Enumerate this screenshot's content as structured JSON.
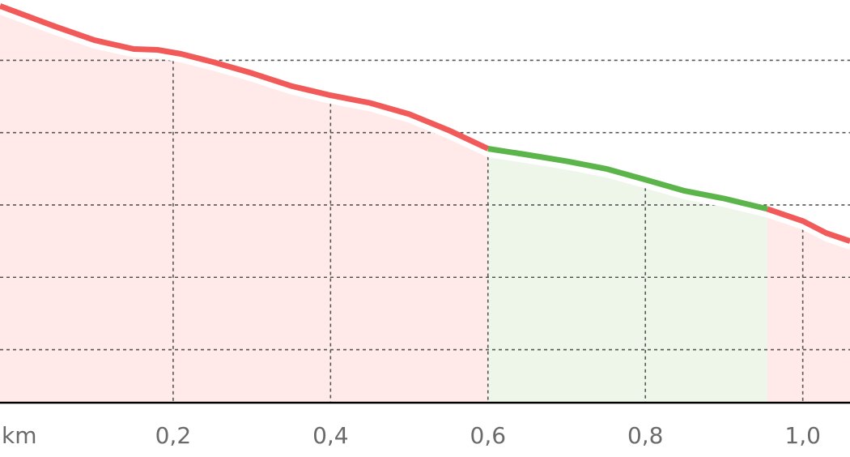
{
  "chart_data": {
    "type": "area",
    "xunit": "km",
    "xlim": [
      -0.02,
      1.06
    ],
    "x_ticks": [
      0.2,
      0.4,
      0.6,
      0.8,
      1.0
    ],
    "x_tick_labels": [
      "0,2",
      "0,4",
      "0,6",
      "0,8",
      "1,0"
    ],
    "ylim": [
      0,
      100
    ],
    "y_gridlines": [
      13,
      31,
      49,
      67,
      85,
      103
    ],
    "grid": true,
    "colors": {
      "steep": "#f25a5a",
      "moderate": "#5cb54a",
      "steep_fill": "#ffe9e9",
      "moderate_fill": "#eef6ea",
      "grid": "#555555",
      "axis": "#000000",
      "tick_label": "#6a6a6a"
    },
    "segments": [
      {
        "category": "steep",
        "points": [
          [
            -0.02,
            98.5
          ],
          [
            0.05,
            93.4
          ],
          [
            0.1,
            90.0
          ],
          [
            0.15,
            87.8
          ],
          [
            0.18,
            87.6
          ],
          [
            0.21,
            86.6
          ],
          [
            0.25,
            84.6
          ],
          [
            0.3,
            81.8
          ],
          [
            0.35,
            78.6
          ],
          [
            0.4,
            76.3
          ],
          [
            0.45,
            74.4
          ],
          [
            0.5,
            71.6
          ],
          [
            0.55,
            67.6
          ],
          [
            0.6,
            63.0
          ]
        ]
      },
      {
        "category": "moderate",
        "points": [
          [
            0.6,
            63.0
          ],
          [
            0.65,
            61.5
          ],
          [
            0.7,
            59.9
          ],
          [
            0.75,
            58.0
          ],
          [
            0.8,
            55.3
          ],
          [
            0.85,
            52.5
          ],
          [
            0.9,
            50.6
          ],
          [
            0.955,
            48.0
          ]
        ]
      },
      {
        "category": "steep",
        "points": [
          [
            0.955,
            48.0
          ],
          [
            1.0,
            45.0
          ],
          [
            1.03,
            42.0
          ],
          [
            1.06,
            40.0
          ]
        ]
      }
    ]
  }
}
